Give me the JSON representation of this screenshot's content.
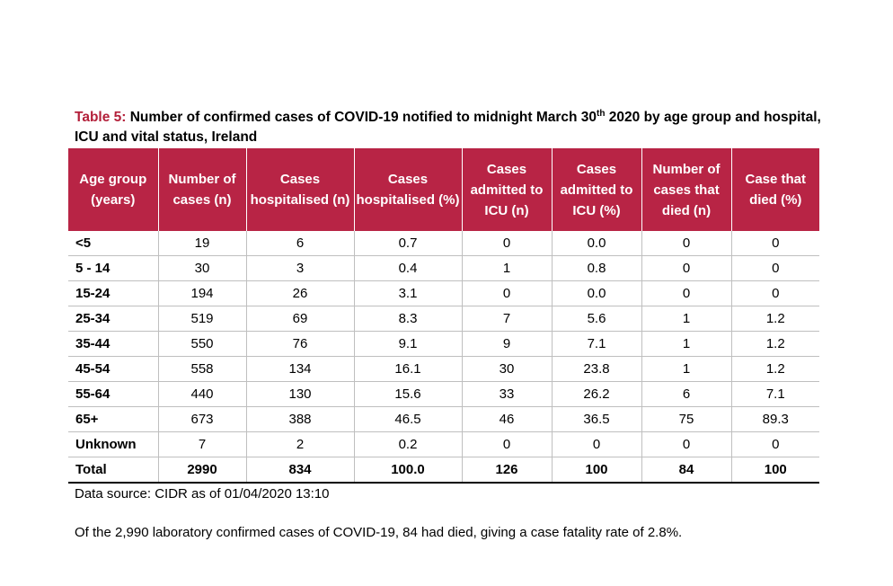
{
  "caption": {
    "label": "Table 5:",
    "text_before_sup": " Number of confirmed cases of COVID-19 notified to midnight March 30",
    "sup": "th",
    "text_after_sup": " 2020 by age group and hospital, ICU and vital status, Ireland"
  },
  "table": {
    "headers": [
      "Age group (years)",
      "Number of cases (n)",
      "Cases hospitalised (n)",
      "Cases hospitalised (%)",
      "Cases admitted to ICU (n)",
      "Cases admitted to ICU (%)",
      "Number of cases that died (n)",
      "Case that died (%)"
    ],
    "rows": [
      [
        "<5",
        "19",
        "6",
        "0.7",
        "0",
        "0.0",
        "0",
        "0"
      ],
      [
        "5 - 14",
        "30",
        "3",
        "0.4",
        "1",
        "0.8",
        "0",
        "0"
      ],
      [
        "15-24",
        "194",
        "26",
        "3.1",
        "0",
        "0.0",
        "0",
        "0"
      ],
      [
        "25-34",
        "519",
        "69",
        "8.3",
        "7",
        "5.6",
        "1",
        "1.2"
      ],
      [
        "35-44",
        "550",
        "76",
        "9.1",
        "9",
        "7.1",
        "1",
        "1.2"
      ],
      [
        "45-54",
        "558",
        "134",
        "16.1",
        "30",
        "23.8",
        "1",
        "1.2"
      ],
      [
        "55-64",
        "440",
        "130",
        "15.6",
        "33",
        "26.2",
        "6",
        "7.1"
      ],
      [
        "65+",
        "673",
        "388",
        "46.5",
        "46",
        "36.5",
        "75",
        "89.3"
      ],
      [
        "Unknown",
        "7",
        "2",
        "0.2",
        "0",
        "0",
        "0",
        "0"
      ],
      [
        "Total",
        "2990",
        "834",
        "100.0",
        "126",
        "100",
        "84",
        "100"
      ]
    ]
  },
  "source": "Data source: CIDR as of 01/04/2020 13:10",
  "note": "Of the 2,990 laboratory confirmed cases of COVID-19, 84 had died, giving a case fatality rate of 2.8%.",
  "colors": {
    "header_bg": "#b82445",
    "label_red": "#b3203a"
  }
}
